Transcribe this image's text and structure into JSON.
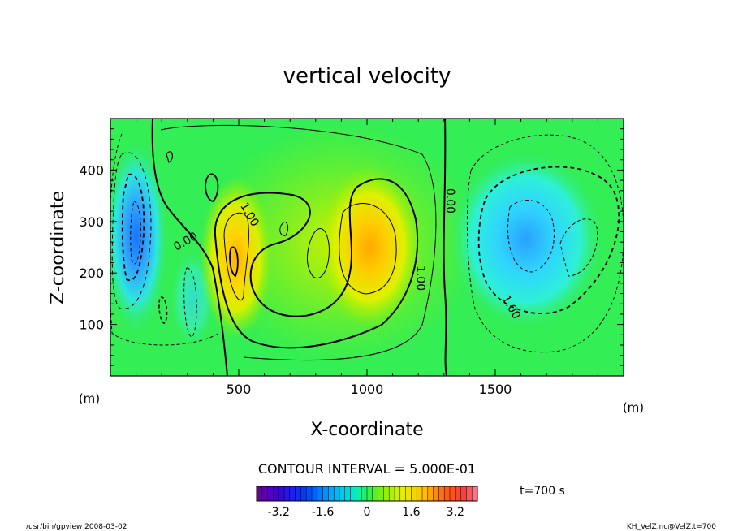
{
  "chart_data": {
    "type": "heatmap",
    "title": "vertical velocity",
    "xlabel": "X-coordinate",
    "ylabel": "Z-coordinate",
    "x_unit": "(m)",
    "y_unit": "(m)",
    "xlim": [
      0,
      2000
    ],
    "ylim": [
      0,
      500
    ],
    "x_ticks": [
      500,
      1000,
      1500
    ],
    "y_ticks": [
      100,
      200,
      300,
      400
    ],
    "contour_interval_text": "CONTOUR INTERVAL = 5.000E-01",
    "time_label": "t=700 s",
    "contour_labels": [
      {
        "text": "1.00",
        "x": 530,
        "y": 310
      },
      {
        "text": "0.00",
        "x": 300,
        "y": 255
      },
      {
        "text": "1.00",
        "x": 1195,
        "y": 190
      },
      {
        "text": "0.00",
        "x": 1310,
        "y": 340
      },
      {
        "text": "1.00",
        "x": 1550,
        "y": 130
      }
    ],
    "colorbar": {
      "min": -4.0,
      "max": 4.0,
      "tick_values": [
        -3.2,
        -1.6,
        0,
        1.6,
        3.2
      ],
      "tick_labels": [
        "-3.2",
        "-1.6",
        "0",
        "1.6",
        "3.2"
      ]
    },
    "cells": [
      {
        "x": 100,
        "z": 270,
        "w": -2.8
      },
      {
        "x": 320,
        "z": 150,
        "w": -1.2
      },
      {
        "x": 490,
        "z": 230,
        "w": 2.6
      },
      {
        "x": 1010,
        "z": 250,
        "w": 2.2
      },
      {
        "x": 1620,
        "z": 265,
        "w": -1.9
      }
    ]
  },
  "footer": {
    "left": "/usr/bin/gpview  2008-03-02",
    "right": "KH_VelZ.nc@VelZ,t=700"
  }
}
